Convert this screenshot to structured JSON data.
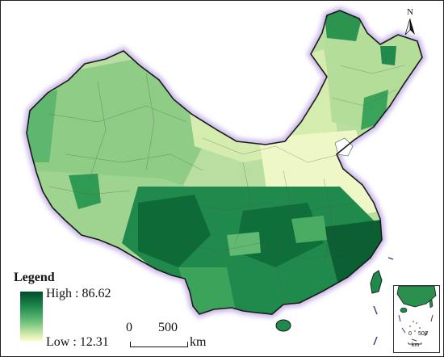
{
  "legend": {
    "title": "Legend",
    "high_label": "High : 86.62",
    "low_label": "Low : 12.31",
    "high_value": 86.62,
    "low_value": 12.31,
    "ramp_colors": [
      "#004d2a",
      "#1f8a4c",
      "#6cc07a",
      "#cfe9a9",
      "#ffffd6"
    ]
  },
  "scale_bar": {
    "start_label": "0",
    "end_label": "500",
    "unit": "km"
  },
  "north_arrow": {
    "letter": "N",
    "icon": "north-arrow-icon"
  },
  "inset": {
    "scale_start": "0",
    "scale_end": "500",
    "unit": "km"
  },
  "colors": {
    "outline": "#1a1a1a",
    "halo": "#cab8e8",
    "darkest": "#004d2a",
    "lightest": "#ffffd6"
  }
}
